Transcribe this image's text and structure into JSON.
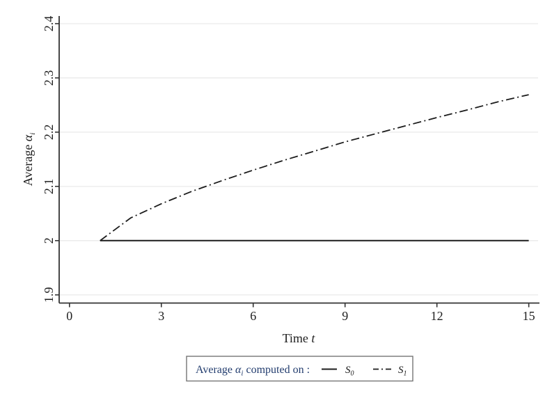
{
  "figure": {
    "background": "#ffffff",
    "text_color": "#1f1f1f",
    "grid_color": "#eaeaea",
    "axis_color": "#333333",
    "line_color": "#1b1b1b",
    "legend_text_color": "#223c6e",
    "legend_border_color": "#757575"
  },
  "chart_data": {
    "type": "line",
    "title": "",
    "xlabel": "Time t",
    "ylabel": "Average α_i",
    "grid": "horizontal",
    "legend_position": "below",
    "xlim": [
      0,
      15.35
    ],
    "ylim": [
      1.887,
      2.415
    ],
    "x_ticks": [
      0,
      3,
      6,
      9,
      12,
      15
    ],
    "x_tick_labels": [
      "0",
      "3",
      "6",
      "9",
      "12",
      "15"
    ],
    "y_ticks": [
      1.9,
      2,
      2.1,
      2.2,
      2.3,
      2.4
    ],
    "y_tick_labels": [
      "1.9",
      "2",
      "2.1",
      "2.2",
      "2.3",
      "2.4"
    ],
    "x": [
      1,
      2,
      3,
      4,
      5,
      6,
      7,
      8,
      9,
      10,
      11,
      12,
      13,
      14,
      15
    ],
    "series": [
      {
        "name": "S0",
        "style": "solid",
        "values": [
          2,
          2,
          2,
          2,
          2,
          2,
          2,
          2,
          2,
          2,
          2,
          2,
          2,
          2,
          2
        ]
      },
      {
        "name": "S1",
        "style": "dash-dot",
        "values": [
          2.0,
          2.042,
          2.068,
          2.091,
          2.111,
          2.13,
          2.148,
          2.165,
          2.182,
          2.197,
          2.212,
          2.227,
          2.241,
          2.256,
          2.269
        ]
      }
    ]
  },
  "labels": {
    "y_title_prefix": "Average ",
    "y_title_symbol": "α",
    "y_title_sub": "i",
    "x_title_prefix": "Time ",
    "x_title_var": "t"
  },
  "legend": {
    "title_prefix": "Average ",
    "title_symbol": "α",
    "title_sub": "i",
    "title_suffix": " computed on :",
    "entries": [
      {
        "label": "S",
        "sub": "0",
        "style": "solid"
      },
      {
        "label": "S",
        "sub": "1",
        "style": "dash-dot"
      }
    ]
  }
}
